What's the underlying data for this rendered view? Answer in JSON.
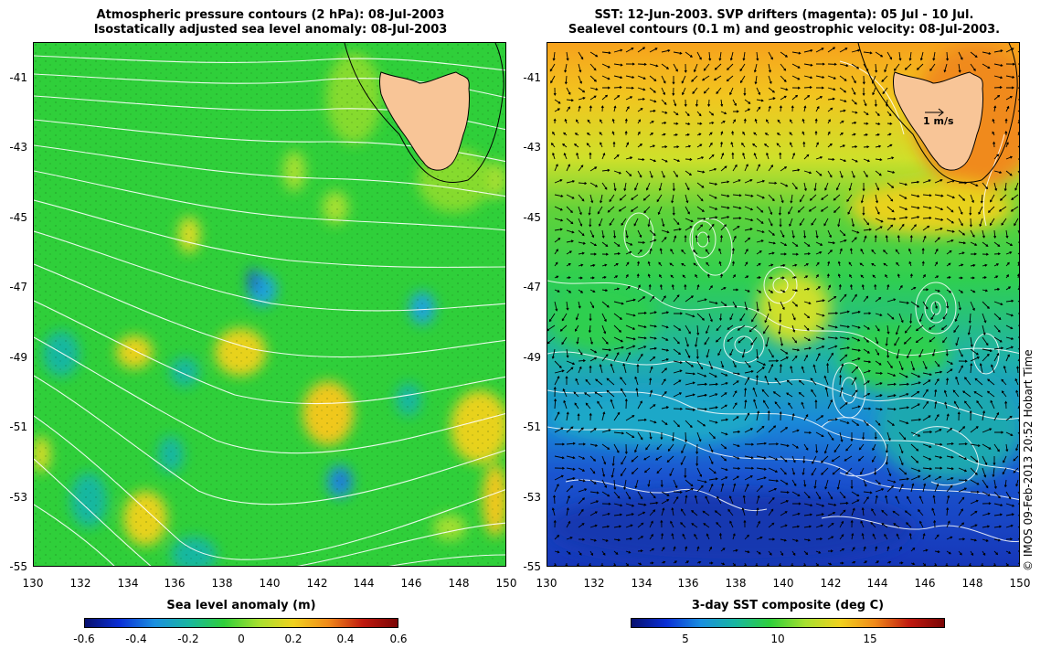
{
  "left_panel": {
    "title_line1": "Atmospheric pressure contours (2 hPa): 08-Jul-2003",
    "title_line2": "Isostatically adjusted sea level anomaly: 08-Jul-2003",
    "lat_ticks": [
      "-41",
      "-43",
      "-45",
      "-47",
      "-49",
      "-51",
      "-53",
      "-55"
    ],
    "lon_ticks": [
      "130",
      "132",
      "134",
      "136",
      "138",
      "140",
      "142",
      "144",
      "146",
      "148",
      "150"
    ],
    "colorbar": {
      "label": "Sea level anomaly (m)",
      "ticks": [
        "-0.6",
        "-0.4",
        "-0.2",
        "0",
        "0.2",
        "0.4",
        "0.6"
      ],
      "min": -0.6,
      "max": 0.6
    },
    "background_color": "#2fcf3a",
    "land_color": "#f8c597"
  },
  "right_panel": {
    "title_line1": "SST: 12-Jun-2003. SVP drifters (magenta): 05 Jul - 10 Jul.",
    "title_line2": "Sealevel contours (0.1 m) and geostrophic velocity: 08-Jul-2003.",
    "lat_ticks": [
      "-41",
      "-43",
      "-45",
      "-47",
      "-49",
      "-51",
      "-53",
      "-55"
    ],
    "lon_ticks": [
      "130",
      "132",
      "134",
      "136",
      "138",
      "140",
      "142",
      "144",
      "146",
      "148",
      "150"
    ],
    "velocity_scale_label": "1 m/s",
    "colorbar": {
      "label": "3-day SST composite (deg C)",
      "ticks": [
        "5",
        "10",
        "15"
      ],
      "min": 2,
      "max": 19
    },
    "land_color": "#f8c597"
  },
  "credit": "© IMOS 09-Feb-2013 20:52 Hobart Time",
  "map_extent": {
    "lon_min": 130,
    "lon_max": 150,
    "lat_min": -55,
    "lat_max": -40
  }
}
